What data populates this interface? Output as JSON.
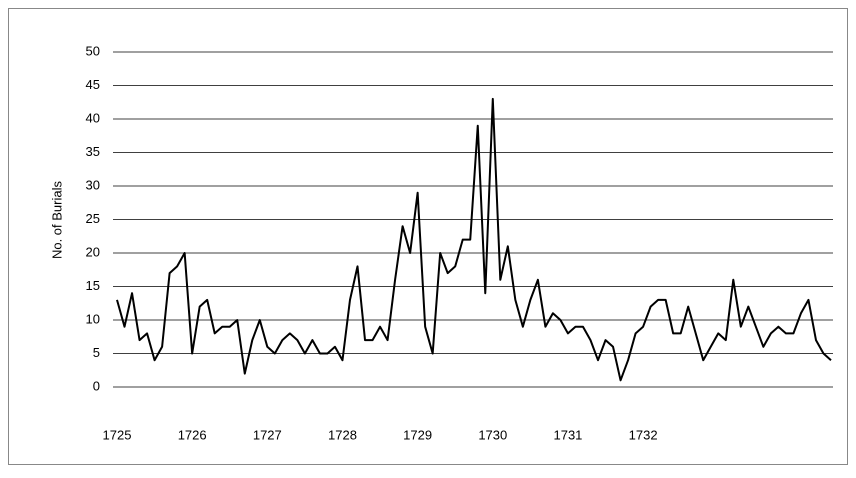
{
  "chart_data": {
    "type": "line",
    "y_label": "No. of Burials",
    "categories": [
      "1725",
      null,
      null,
      null,
      null,
      null,
      null,
      null,
      null,
      null,
      "1726",
      null,
      null,
      null,
      null,
      null,
      null,
      null,
      null,
      null,
      "1727",
      null,
      null,
      null,
      null,
      null,
      null,
      null,
      null,
      null,
      "1728",
      null,
      null,
      null,
      null,
      null,
      null,
      null,
      null,
      null,
      "1729",
      null,
      null,
      null,
      null,
      null,
      null,
      null,
      null,
      null,
      "1730",
      null,
      null,
      null,
      null,
      null,
      null,
      null,
      null,
      null,
      "1731",
      null,
      null,
      null,
      null,
      null,
      null,
      null,
      null,
      null,
      "1732",
      null,
      null,
      null,
      null,
      null,
      null,
      null,
      null,
      null,
      null,
      null,
      null,
      null,
      null,
      null,
      null,
      null,
      null,
      null,
      null,
      null,
      null,
      null,
      null,
      null
    ],
    "series": [
      {
        "color": "#000000",
        "values": [
          13,
          9,
          14,
          7,
          8,
          4,
          6,
          17,
          18,
          20,
          5,
          12,
          13,
          8,
          9,
          9,
          10,
          2,
          7,
          10,
          6,
          5,
          7,
          8,
          7,
          5,
          7,
          5,
          5,
          6,
          4,
          13,
          18,
          7,
          7,
          9,
          7,
          16,
          24,
          20,
          29,
          9,
          5,
          20,
          17,
          18,
          22,
          22,
          39,
          14,
          43,
          16,
          21,
          13,
          9,
          13,
          16,
          9,
          11,
          10,
          8,
          9,
          9,
          7,
          4,
          7,
          6,
          1,
          4,
          8,
          9,
          12,
          13,
          13,
          8,
          8,
          12,
          8,
          4,
          6,
          8,
          7,
          16,
          9,
          12,
          9,
          6,
          8,
          9,
          8,
          8,
          11,
          13,
          7,
          5,
          4
        ]
      }
    ],
    "ylim": [
      0,
      50
    ],
    "yticks": [
      0,
      5,
      10,
      15,
      20,
      25,
      30,
      35,
      40,
      45,
      50
    ],
    "grid": true
  }
}
